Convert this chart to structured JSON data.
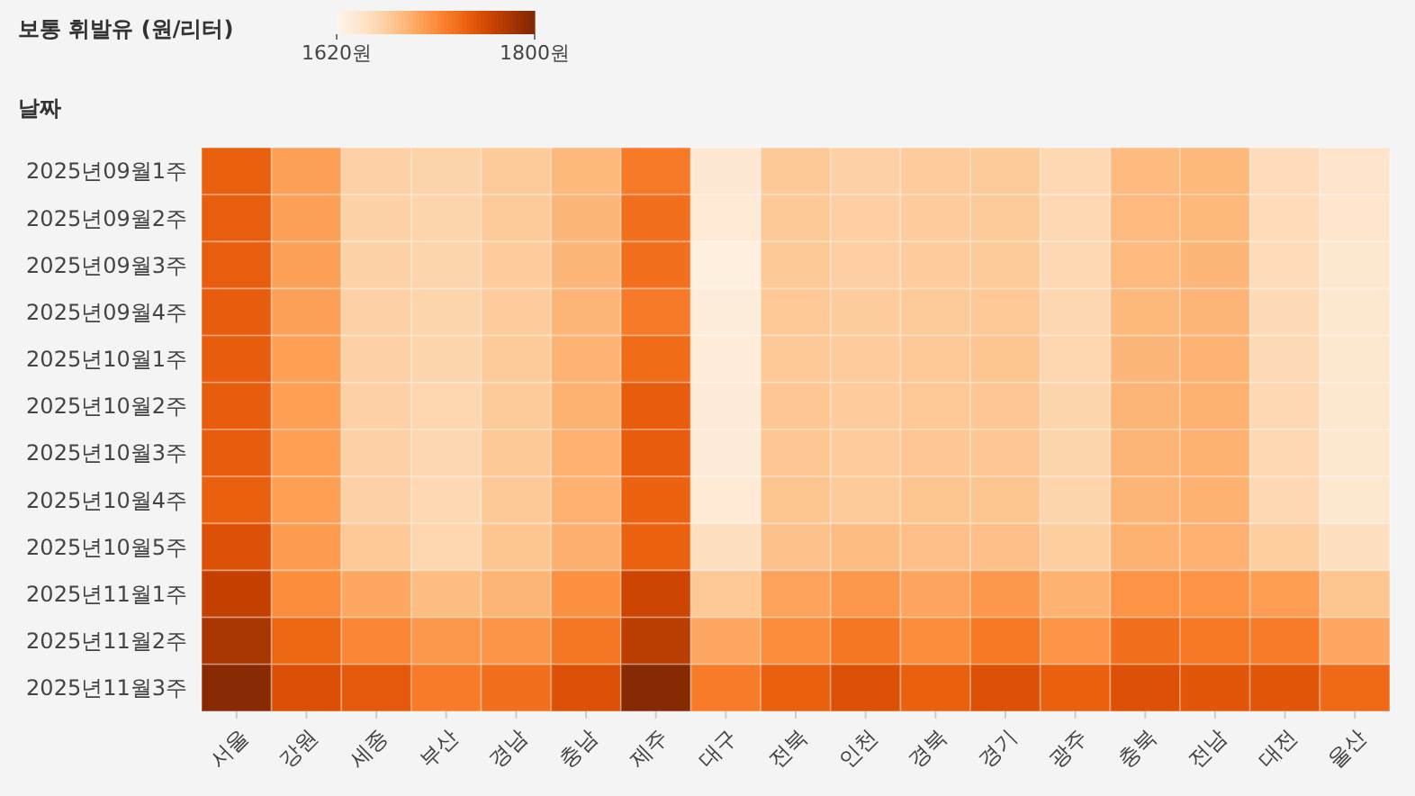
{
  "chart_data": {
    "type": "heatmap",
    "clabel": "보통 휘발유 (원/리터)",
    "ylabel": "날짜",
    "categories": [
      "서울",
      "강원",
      "세종",
      "부산",
      "경남",
      "충남",
      "제주",
      "대구",
      "전북",
      "인천",
      "경북",
      "경기",
      "광주",
      "충북",
      "전남",
      "대전",
      "울산"
    ],
    "y_categories": [
      "2025년09월1주",
      "2025년09월2주",
      "2025년09월3주",
      "2025년09월4주",
      "2025년10월1주",
      "2025년10월2주",
      "2025년10월3주",
      "2025년10월4주",
      "2025년10월5주",
      "2025년11월1주",
      "2025년11월2주",
      "2025년11월3주"
    ],
    "clim": [
      1620,
      1800
    ],
    "cticks": [
      {
        "value": 1620,
        "label": "1620원"
      },
      {
        "value": 1800,
        "label": "1800원"
      }
    ],
    "cells": [
      [
        1739,
        1697,
        1663,
        1661,
        1668,
        1681,
        1722,
        1638,
        1669,
        1663,
        1667,
        1668,
        1656,
        1679,
        1681,
        1652,
        1643
      ],
      [
        1740,
        1697,
        1662,
        1660,
        1668,
        1682,
        1728,
        1636,
        1669,
        1664,
        1667,
        1668,
        1656,
        1680,
        1681,
        1653,
        1642
      ],
      [
        1740,
        1697,
        1662,
        1660,
        1667,
        1682,
        1728,
        1629,
        1669,
        1664,
        1667,
        1668,
        1656,
        1680,
        1682,
        1653,
        1640
      ],
      [
        1741,
        1697,
        1663,
        1659,
        1667,
        1683,
        1722,
        1633,
        1670,
        1666,
        1668,
        1670,
        1657,
        1681,
        1683,
        1654,
        1640
      ],
      [
        1741,
        1698,
        1663,
        1659,
        1668,
        1684,
        1731,
        1634,
        1670,
        1667,
        1670,
        1672,
        1658,
        1682,
        1684,
        1655,
        1640
      ],
      [
        1741,
        1698,
        1663,
        1658,
        1668,
        1685,
        1741,
        1635,
        1671,
        1667,
        1670,
        1671,
        1659,
        1683,
        1685,
        1656,
        1640
      ],
      [
        1741,
        1698,
        1663,
        1657,
        1669,
        1686,
        1741,
        1635,
        1671,
        1667,
        1671,
        1671,
        1659,
        1683,
        1685,
        1656,
        1640
      ],
      [
        1739,
        1698,
        1663,
        1656,
        1669,
        1686,
        1737,
        1636,
        1672,
        1668,
        1672,
        1672,
        1660,
        1683,
        1685,
        1656,
        1640
      ],
      [
        1750,
        1700,
        1670,
        1658,
        1672,
        1687,
        1737,
        1649,
        1674,
        1678,
        1676,
        1676,
        1665,
        1685,
        1686,
        1665,
        1649
      ],
      [
        1764,
        1710,
        1692,
        1678,
        1683,
        1708,
        1760,
        1670,
        1696,
        1703,
        1694,
        1703,
        1685,
        1706,
        1706,
        1699,
        1672
      ],
      [
        1777,
        1735,
        1714,
        1703,
        1705,
        1724,
        1769,
        1692,
        1710,
        1724,
        1710,
        1723,
        1706,
        1728,
        1723,
        1721,
        1692
      ],
      [
        1795,
        1751,
        1744,
        1721,
        1728,
        1750,
        1796,
        1721,
        1739,
        1750,
        1739,
        1750,
        1739,
        1750,
        1746,
        1746,
        1733
      ]
    ]
  }
}
